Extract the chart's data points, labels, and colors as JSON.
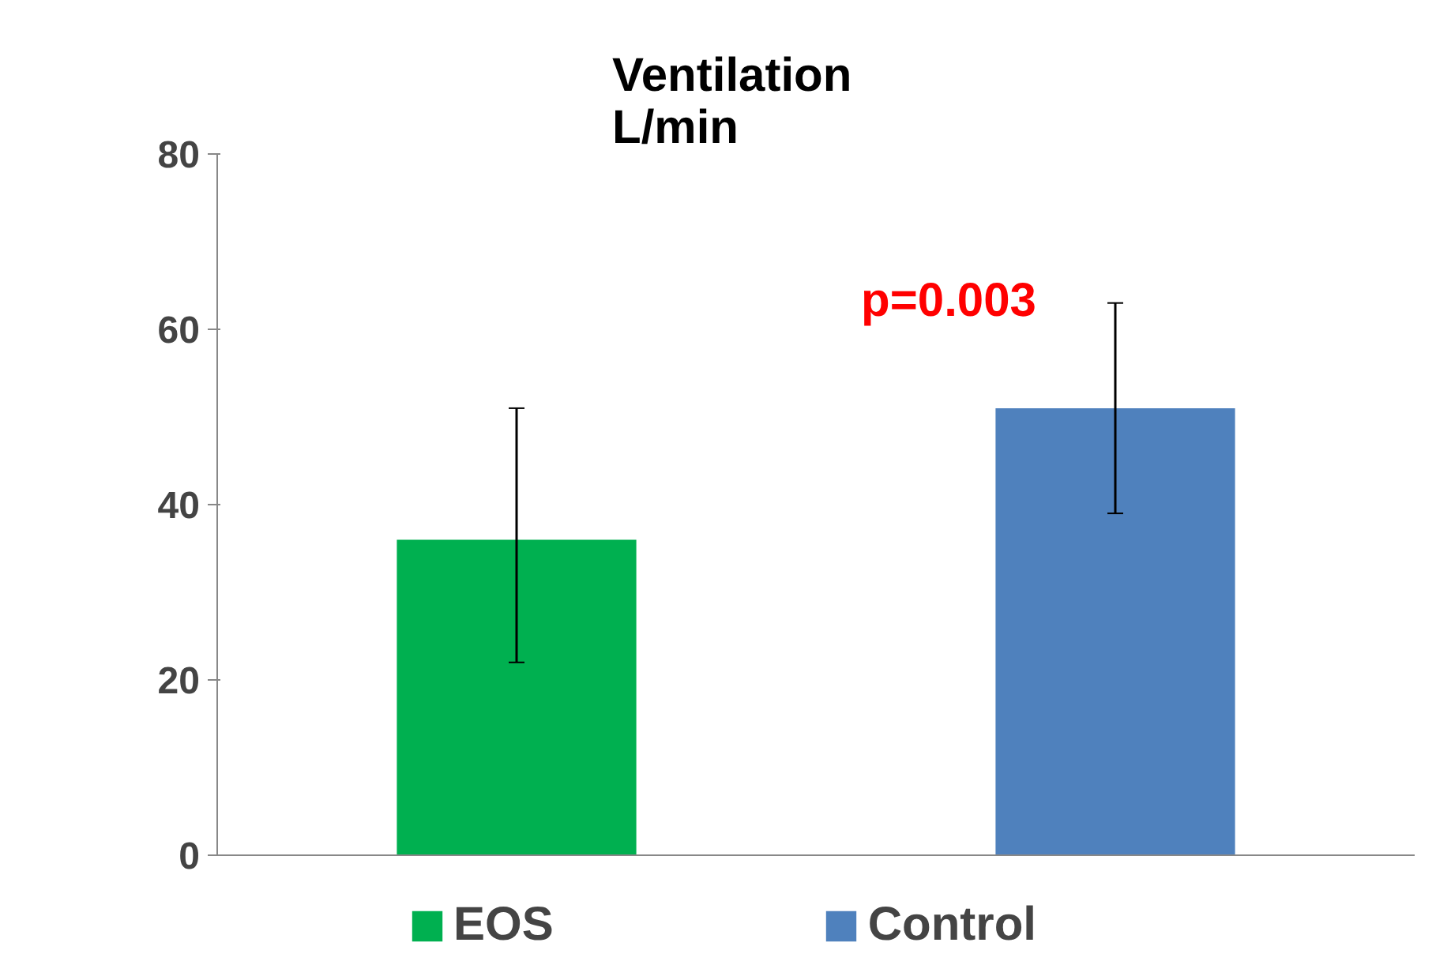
{
  "chart_data": {
    "type": "bar",
    "title": "Ventilation\nL/min",
    "annotations": [
      "p=0.003"
    ],
    "categories": [
      null,
      null
    ],
    "series": [
      {
        "name": "EOS",
        "color": "#00b050",
        "values": [
          36,
          null
        ],
        "errors": [
          [
            22,
            51
          ],
          null
        ]
      },
      {
        "name": "Control",
        "color": "#4f81bd",
        "values": [
          null,
          51
        ],
        "errors": [
          null,
          [
            39,
            63
          ]
        ]
      }
    ],
    "ylim": [
      0,
      80
    ],
    "yticks": [
      0,
      20,
      40,
      60,
      80
    ],
    "grid": false,
    "legend": "bottom"
  }
}
